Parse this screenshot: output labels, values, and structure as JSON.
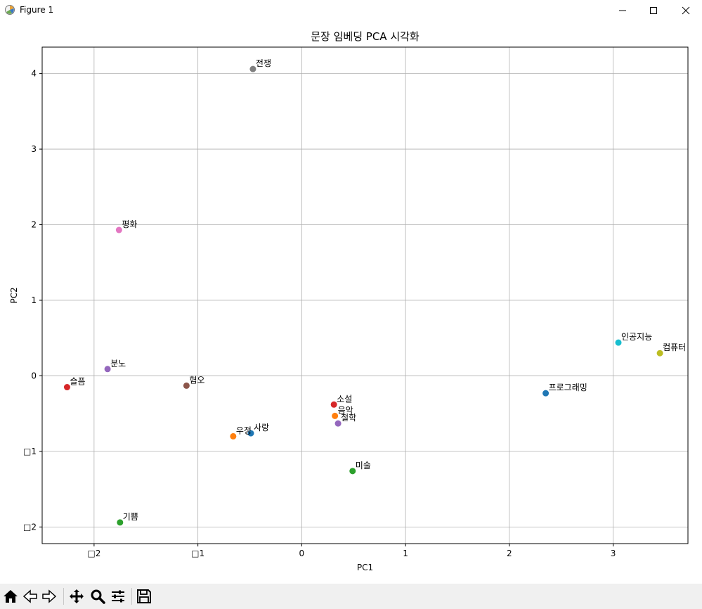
{
  "window": {
    "title": "Figure 1",
    "icons": [
      "matplotlib-icon",
      "minimize-icon",
      "maximize-icon",
      "close-icon"
    ]
  },
  "toolbar": {
    "buttons": [
      "home-icon",
      "back-icon",
      "forward-icon",
      "pan-icon",
      "zoom-icon",
      "configure-subplots-icon",
      "save-icon"
    ]
  },
  "chart_data": {
    "type": "scatter",
    "title": "문장 임베딩 PCA 시각화",
    "xlabel": "PC1",
    "ylabel": "PC2",
    "xlim": [
      -2.5,
      3.72
    ],
    "ylim": [
      -2.22,
      4.35
    ],
    "xticks": [
      -2,
      -1,
      0,
      1,
      2,
      3
    ],
    "xtick_labels": [
      "□2",
      "□1",
      "0",
      "1",
      "2",
      "3"
    ],
    "yticks": [
      -2,
      -1,
      0,
      1,
      2,
      3,
      4
    ],
    "ytick_labels": [
      "□2",
      "□1",
      "0",
      "1",
      "2",
      "3",
      "4"
    ],
    "grid": true,
    "points": [
      {
        "label": "사랑",
        "x": -0.49,
        "y": -0.76,
        "color": "#1f77b4"
      },
      {
        "label": "우정",
        "x": -0.66,
        "y": -0.8,
        "color": "#ff7f0e"
      },
      {
        "label": "기쁨",
        "x": -1.75,
        "y": -1.94,
        "color": "#2ca02c"
      },
      {
        "label": "슬픔",
        "x": -2.26,
        "y": -0.15,
        "color": "#d62728"
      },
      {
        "label": "분노",
        "x": -1.87,
        "y": 0.09,
        "color": "#9467bd"
      },
      {
        "label": "혐오",
        "x": -1.11,
        "y": -0.13,
        "color": "#8c564b"
      },
      {
        "label": "평화",
        "x": -1.76,
        "y": 1.93,
        "color": "#e377c2"
      },
      {
        "label": "전쟁",
        "x": -0.47,
        "y": 4.06,
        "color": "#7f7f7f"
      },
      {
        "label": "컴퓨터",
        "x": 3.45,
        "y": 0.3,
        "color": "#bcbd22"
      },
      {
        "label": "인공지능",
        "x": 3.05,
        "y": 0.44,
        "color": "#17becf"
      },
      {
        "label": "프로그래밍",
        "x": 2.35,
        "y": -0.23,
        "color": "#1f77b4"
      },
      {
        "label": "음악",
        "x": 0.32,
        "y": -0.53,
        "color": "#ff7f0e"
      },
      {
        "label": "미술",
        "x": 0.49,
        "y": -1.26,
        "color": "#2ca02c"
      },
      {
        "label": "소설",
        "x": 0.31,
        "y": -0.38,
        "color": "#d62728"
      },
      {
        "label": "철학",
        "x": 0.35,
        "y": -0.63,
        "color": "#9467bd"
      }
    ]
  }
}
